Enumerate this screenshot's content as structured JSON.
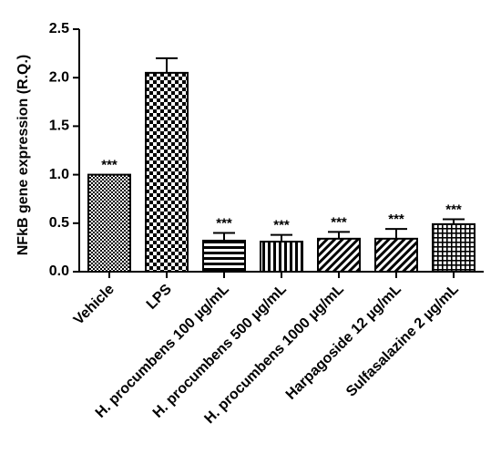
{
  "chart_data": {
    "type": "bar",
    "ylabel": "NFkB gene expression (R.Q.)",
    "ylim": [
      0,
      2.5
    ],
    "yticks": [
      "0.0",
      "0.5",
      "1.0",
      "1.5",
      "2.0",
      "2.5"
    ],
    "categories": [
      "Vehicle",
      "LPS",
      "H. procumbens 100 µg/mL",
      "H. procumbens 500 µg/mL",
      "H. procumbens 1000 µg/mL",
      "Harpagoside 12 µg/mL",
      "Sulfasalazine 2 µg/mL"
    ],
    "values": [
      1.0,
      2.05,
      0.32,
      0.31,
      0.34,
      0.34,
      0.49
    ],
    "errors": [
      0.0,
      0.15,
      0.08,
      0.07,
      0.07,
      0.1,
      0.05
    ],
    "significance": [
      "***",
      "",
      "***",
      "***",
      "***",
      "***",
      "***"
    ],
    "patterns": [
      "crosshatch-fine",
      "checker",
      "horizontal",
      "vertical",
      "diagonal",
      "diagonal",
      "grid"
    ],
    "colors": {
      "ink": "#000000",
      "background": "#ffffff"
    }
  }
}
